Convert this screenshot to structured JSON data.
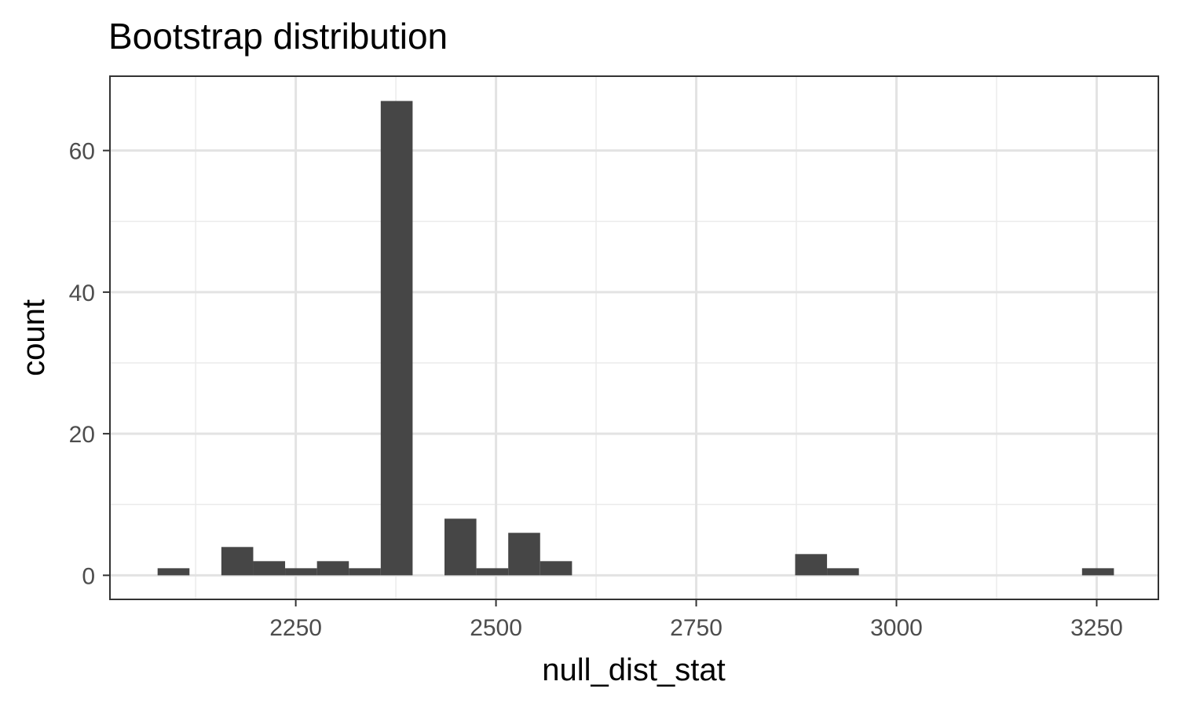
{
  "chart_data": {
    "type": "bar",
    "title": "Bootstrap distribution",
    "xlabel": "null_dist_stat",
    "ylabel": "count",
    "xlim": [
      2018,
      3327
    ],
    "ylim": [
      -3.4,
      70.5
    ],
    "x_ticks": [
      2250,
      2500,
      2750,
      3000,
      3250
    ],
    "x_tick_labels": [
      "2250",
      "2500",
      "2750",
      "3000",
      "3250"
    ],
    "y_ticks": [
      0,
      20,
      40,
      60
    ],
    "y_tick_labels": [
      "0",
      "20",
      "40",
      "60"
    ],
    "x_minor_ticks": [
      2125,
      2375,
      2625,
      2875,
      3125
    ],
    "y_minor_ticks": [
      10,
      30,
      50
    ],
    "grid": true,
    "bar_color": "#464646",
    "bins": [
      {
        "x0": 2077.5,
        "x1": 2117.3,
        "count": 1
      },
      {
        "x0": 2157.1,
        "x1": 2196.9,
        "count": 4
      },
      {
        "x0": 2196.9,
        "x1": 2236.7,
        "count": 2
      },
      {
        "x0": 2236.7,
        "x1": 2276.5,
        "count": 1
      },
      {
        "x0": 2276.5,
        "x1": 2316.3,
        "count": 2
      },
      {
        "x0": 2316.3,
        "x1": 2356.1,
        "count": 1
      },
      {
        "x0": 2356.1,
        "x1": 2395.9,
        "count": 67
      },
      {
        "x0": 2435.7,
        "x1": 2475.5,
        "count": 8
      },
      {
        "x0": 2475.5,
        "x1": 2515.3,
        "count": 1
      },
      {
        "x0": 2515.3,
        "x1": 2555.1,
        "count": 6
      },
      {
        "x0": 2555.1,
        "x1": 2594.9,
        "count": 2
      },
      {
        "x0": 2873.5,
        "x1": 2913.3,
        "count": 3
      },
      {
        "x0": 2913.3,
        "x1": 2953.1,
        "count": 1
      },
      {
        "x0": 3231.7,
        "x1": 3271.5,
        "count": 1
      }
    ]
  }
}
